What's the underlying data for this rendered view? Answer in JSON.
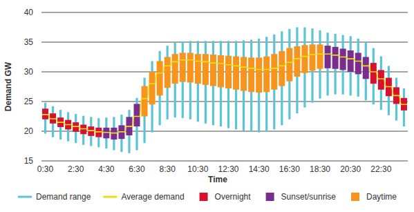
{
  "chart_data": {
    "type": "box",
    "x_label": "Time",
    "y_label": "Demand GW",
    "categories": [
      "0:30",
      null,
      null,
      null,
      "2:30",
      null,
      null,
      null,
      "4:30",
      null,
      null,
      null,
      "6:30",
      null,
      null,
      null,
      "8:30",
      null,
      null,
      null,
      "10:30",
      null,
      null,
      null,
      "12:30",
      null,
      null,
      null,
      "14:30",
      null,
      null,
      null,
      "16:30",
      null,
      null,
      null,
      "18:30",
      null,
      null,
      null,
      "20:30",
      null,
      null,
      null,
      "22:30",
      null,
      null,
      null
    ],
    "ylim": [
      15,
      40
    ],
    "yticks": [
      15,
      20,
      25,
      30,
      35,
      40
    ],
    "grid": true,
    "legend": "bottom",
    "series": [
      {
        "name": "Demand range",
        "type": "range",
        "color": "#5bc5d8",
        "low": [
          19.6,
          19.0,
          18.6,
          18.3,
          18.0,
          17.7,
          17.5,
          17.3,
          17.1,
          16.8,
          16.5,
          16.3,
          16.8,
          18.0,
          19.8,
          21.0,
          22.0,
          22.3,
          22.2,
          22.0,
          21.6,
          21.3,
          21.0,
          20.8,
          20.5,
          20.3,
          20.1,
          19.9,
          19.8,
          19.9,
          20.3,
          21.0,
          22.0,
          23.0,
          24.0,
          24.8,
          25.5,
          26.0,
          26.2,
          26.2,
          26.0,
          25.8,
          25.2,
          24.5,
          23.6,
          22.7,
          21.8,
          20.8
        ],
        "high": [
          24.8,
          24.2,
          23.6,
          23.2,
          22.9,
          22.6,
          22.4,
          22.2,
          22.3,
          22.4,
          22.8,
          23.6,
          25.6,
          29.0,
          31.8,
          33.5,
          34.4,
          34.9,
          35.1,
          35.2,
          35.2,
          35.2,
          35.2,
          35.2,
          35.2,
          35.2,
          35.3,
          35.4,
          35.6,
          35.9,
          36.3,
          36.8,
          37.2,
          37.5,
          37.5,
          37.3,
          37.0,
          36.6,
          36.4,
          36.2,
          36.0,
          35.6,
          35.0,
          34.0,
          32.6,
          31.0,
          29.0,
          27.2
        ]
      },
      {
        "name": "Average demand",
        "type": "line",
        "color": "#e4e01a",
        "values": [
          22.8,
          22.1,
          21.5,
          21.1,
          20.8,
          20.4,
          20.1,
          19.9,
          19.8,
          19.7,
          19.9,
          20.8,
          22.5,
          25.5,
          28.0,
          29.8,
          31.0,
          31.7,
          32.0,
          32.0,
          31.8,
          31.7,
          31.5,
          31.4,
          31.2,
          31.0,
          30.8,
          30.6,
          30.4,
          30.4,
          30.6,
          31.0,
          31.6,
          32.2,
          32.6,
          32.9,
          33.0,
          33.0,
          32.8,
          32.5,
          32.2,
          31.8,
          31.0,
          30.0,
          28.8,
          27.5,
          26.0,
          24.5
        ]
      },
      {
        "name": "Overnight",
        "type": "box",
        "color": "#d9102e",
        "low": [
          22.0,
          21.3,
          20.7,
          20.3,
          19.9,
          19.5,
          19.2,
          19.0,
          null,
          null,
          null,
          null,
          null,
          null,
          null,
          null,
          null,
          null,
          null,
          null,
          null,
          null,
          null,
          null,
          null,
          null,
          null,
          null,
          null,
          null,
          null,
          null,
          null,
          null,
          null,
          null,
          null,
          null,
          null,
          null,
          null,
          null,
          null,
          28.0,
          27.0,
          25.9,
          24.6,
          23.5
        ],
        "high": [
          23.8,
          23.0,
          22.3,
          21.9,
          21.5,
          21.1,
          20.8,
          20.6,
          null,
          null,
          null,
          null,
          null,
          null,
          null,
          null,
          null,
          null,
          null,
          null,
          null,
          null,
          null,
          null,
          null,
          null,
          null,
          null,
          null,
          null,
          null,
          null,
          null,
          null,
          null,
          null,
          null,
          null,
          null,
          null,
          null,
          null,
          null,
          31.5,
          30.3,
          29.0,
          27.4,
          25.6
        ]
      },
      {
        "name": "Sunset/sunrise",
        "type": "box",
        "color": "#7b2d8e",
        "low": [
          null,
          null,
          null,
          null,
          null,
          null,
          null,
          null,
          18.8,
          18.6,
          18.7,
          19.3,
          20.8,
          null,
          null,
          null,
          null,
          null,
          null,
          null,
          null,
          null,
          null,
          null,
          null,
          null,
          null,
          null,
          null,
          null,
          null,
          null,
          null,
          null,
          null,
          null,
          null,
          30.6,
          30.5,
          30.3,
          30.0,
          29.6,
          28.8,
          null,
          null,
          null,
          null,
          null
        ],
        "high": [
          null,
          null,
          null,
          null,
          null,
          null,
          null,
          null,
          20.6,
          20.6,
          21.0,
          22.4,
          24.6,
          null,
          null,
          null,
          null,
          null,
          null,
          null,
          null,
          null,
          null,
          null,
          null,
          null,
          null,
          null,
          null,
          null,
          null,
          null,
          null,
          null,
          null,
          null,
          null,
          34.4,
          34.2,
          33.9,
          33.6,
          33.2,
          32.5,
          null,
          null,
          null,
          null,
          null
        ]
      },
      {
        "name": "Daytime",
        "type": "box",
        "color": "#f7941d",
        "low": [
          null,
          null,
          null,
          null,
          null,
          null,
          null,
          null,
          null,
          null,
          null,
          null,
          null,
          22.5,
          24.5,
          26.0,
          27.3,
          28.0,
          28.3,
          28.2,
          28.0,
          27.8,
          27.6,
          27.4,
          27.2,
          27.0,
          26.8,
          26.6,
          26.5,
          26.6,
          27.0,
          27.6,
          28.4,
          29.2,
          29.8,
          30.2,
          30.5,
          null,
          null,
          null,
          null,
          null,
          null,
          null,
          null,
          null,
          null,
          null
        ],
        "high": [
          null,
          null,
          null,
          null,
          null,
          null,
          null,
          null,
          null,
          null,
          null,
          null,
          null,
          27.6,
          30.0,
          31.8,
          32.5,
          33.0,
          33.2,
          33.2,
          33.0,
          33.0,
          32.9,
          32.8,
          32.7,
          32.6,
          32.5,
          32.4,
          32.4,
          32.6,
          33.0,
          33.5,
          34.0,
          34.3,
          34.5,
          34.6,
          34.6,
          null,
          null,
          null,
          null,
          null,
          null,
          null,
          null,
          null,
          null,
          null
        ]
      }
    ]
  }
}
